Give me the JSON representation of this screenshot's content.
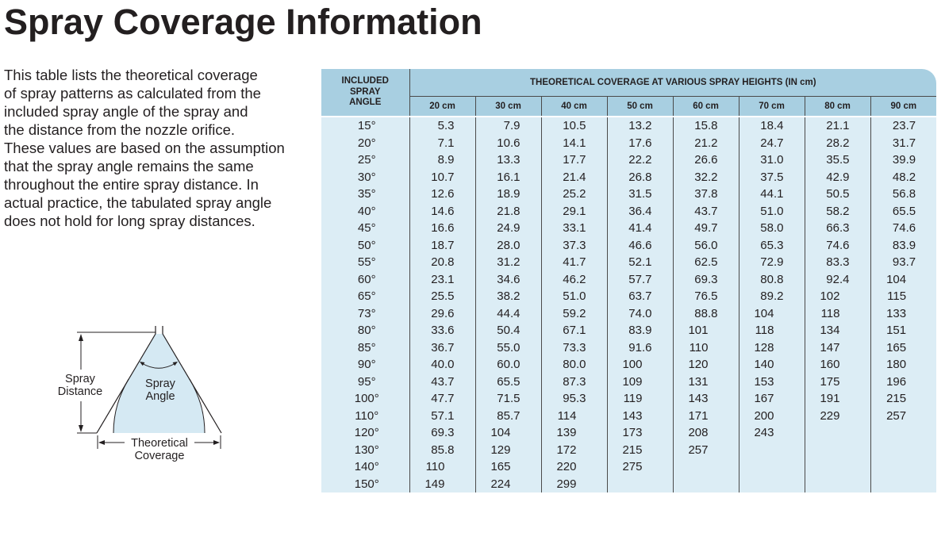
{
  "page": {
    "title": "Spray Coverage Information",
    "intro_lines": [
      "This table lists the theoretical coverage",
      "of spray patterns as calculated from the",
      "included spray angle of the spray and",
      "the distance from the nozzle orifice.",
      "These values are based on the assumption",
      "that the spray angle remains the same",
      "throughout the entire spray distance. In",
      "actual practice, the tabulated spray angle",
      "does not hold for long spray distances."
    ]
  },
  "diagram": {
    "spray_distance_label": "Spray Distance",
    "spray_angle_label": "Spray Angle",
    "coverage_label": "Theoretical Coverage"
  },
  "table": {
    "angle_header": "INCLUDED SPRAY ANGLE",
    "group_header": "THEORETICAL COVERAGE AT VARIOUS SPRAY HEIGHTS (IN cm)",
    "columns": [
      "20 cm",
      "30 cm",
      "40 cm",
      "50 cm",
      "60 cm",
      "70 cm",
      "80 cm",
      "90 cm"
    ],
    "rows": [
      {
        "angle": "15°",
        "values": [
          "5.3",
          "7.9",
          "10.5",
          "13.2",
          "15.8",
          "18.4",
          "21.1",
          "23.7"
        ]
      },
      {
        "angle": "20°",
        "values": [
          "7.1",
          "10.6",
          "14.1",
          "17.6",
          "21.2",
          "24.7",
          "28.2",
          "31.7"
        ]
      },
      {
        "angle": "25°",
        "values": [
          "8.9",
          "13.3",
          "17.7",
          "22.2",
          "26.6",
          "31.0",
          "35.5",
          "39.9"
        ]
      },
      {
        "angle": "30°",
        "values": [
          "10.7",
          "16.1",
          "21.4",
          "26.8",
          "32.2",
          "37.5",
          "42.9",
          "48.2"
        ]
      },
      {
        "angle": "35°",
        "values": [
          "12.6",
          "18.9",
          "25.2",
          "31.5",
          "37.8",
          "44.1",
          "50.5",
          "56.8"
        ]
      },
      {
        "angle": "40°",
        "values": [
          "14.6",
          "21.8",
          "29.1",
          "36.4",
          "43.7",
          "51.0",
          "58.2",
          "65.5"
        ]
      },
      {
        "angle": "45°",
        "values": [
          "16.6",
          "24.9",
          "33.1",
          "41.4",
          "49.7",
          "58.0",
          "66.3",
          "74.6"
        ]
      },
      {
        "angle": "50°",
        "values": [
          "18.7",
          "28.0",
          "37.3",
          "46.6",
          "56.0",
          "65.3",
          "74.6",
          "83.9"
        ]
      },
      {
        "angle": "55°",
        "values": [
          "20.8",
          "31.2",
          "41.7",
          "52.1",
          "62.5",
          "72.9",
          "83.3",
          "93.7"
        ]
      },
      {
        "angle": "60°",
        "values": [
          "23.1",
          "34.6",
          "46.2",
          "57.7",
          "69.3",
          "80.8",
          "92.4",
          "104"
        ]
      },
      {
        "angle": "65°",
        "values": [
          "25.5",
          "38.2",
          "51.0",
          "63.7",
          "76.5",
          "89.2",
          "102",
          "115"
        ]
      },
      {
        "angle": "73°",
        "values": [
          "29.6",
          "44.4",
          "59.2",
          "74.0",
          "88.8",
          "104",
          "118",
          "133"
        ]
      },
      {
        "angle": "80°",
        "values": [
          "33.6",
          "50.4",
          "67.1",
          "83.9",
          "101",
          "118",
          "134",
          "151"
        ]
      },
      {
        "angle": "85°",
        "values": [
          "36.7",
          "55.0",
          "73.3",
          "91.6",
          "110",
          "128",
          "147",
          "165"
        ]
      },
      {
        "angle": "90°",
        "values": [
          "40.0",
          "60.0",
          "80.0",
          "100",
          "120",
          "140",
          "160",
          "180"
        ]
      },
      {
        "angle": "95°",
        "values": [
          "43.7",
          "65.5",
          "87.3",
          "109",
          "131",
          "153",
          "175",
          "196"
        ]
      },
      {
        "angle": "100°",
        "values": [
          "47.7",
          "71.5",
          "95.3",
          "119",
          "143",
          "167",
          "191",
          "215"
        ]
      },
      {
        "angle": "110°",
        "values": [
          "57.1",
          "85.7",
          "114",
          "143",
          "171",
          "200",
          "229",
          "257"
        ]
      },
      {
        "angle": "120°",
        "values": [
          "69.3",
          "104",
          "139",
          "173",
          "208",
          "243"
        ]
      },
      {
        "angle": "130°",
        "values": [
          "85.8",
          "129",
          "172",
          "215",
          "257"
        ]
      },
      {
        "angle": "140°",
        "values": [
          "110",
          "165",
          "220",
          "275"
        ]
      },
      {
        "angle": "150°",
        "values": [
          "149",
          "224",
          "299"
        ]
      }
    ]
  },
  "colors": {
    "table_header": "#a8cfe1",
    "table_body": "#dcedf5",
    "spray_pattern": "#d5e9f3",
    "text": "#231f20"
  }
}
